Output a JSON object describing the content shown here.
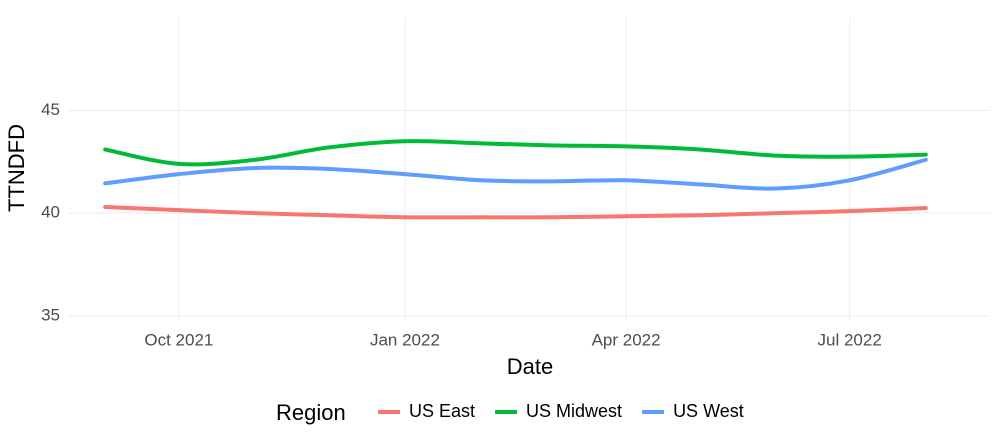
{
  "chart_data": {
    "type": "line",
    "x_label": "Date",
    "y_label": "TTNDFD",
    "x": [
      "2021-09",
      "2021-10",
      "2021-11",
      "2021-12",
      "2022-01",
      "2022-02",
      "2022-03",
      "2022-04",
      "2022-05",
      "2022-06",
      "2022-07",
      "2022-08"
    ],
    "series": [
      {
        "name": "US East",
        "color": "#F8766D",
        "values": [
          40.3,
          40.15,
          40.0,
          39.9,
          39.8,
          39.8,
          39.8,
          39.85,
          39.9,
          40.0,
          40.1,
          40.25
        ]
      },
      {
        "name": "US Midwest",
        "color": "#00BA38",
        "values": [
          43.1,
          42.4,
          42.6,
          43.2,
          43.5,
          43.4,
          43.3,
          43.25,
          43.1,
          42.8,
          42.75,
          42.85
        ]
      },
      {
        "name": "US West",
        "color": "#619CFF",
        "values": [
          41.45,
          41.9,
          42.2,
          42.15,
          41.9,
          41.6,
          41.55,
          41.6,
          41.4,
          41.2,
          41.6,
          42.6
        ]
      }
    ],
    "legend_title": "Region",
    "legend_position": "bottom",
    "xlim": [
      "2021-08",
      "2022-09"
    ],
    "xticks": [
      {
        "value": "2021-10",
        "label": "Oct 2021"
      },
      {
        "value": "2022-01",
        "label": "Jan 2022"
      },
      {
        "value": "2022-04",
        "label": "Apr 2022"
      },
      {
        "value": "2022-07",
        "label": "Jul 2022"
      }
    ],
    "ylim": [
      34.8,
      49.5
    ],
    "yticks": [
      35,
      40,
      45
    ],
    "grid": true
  }
}
